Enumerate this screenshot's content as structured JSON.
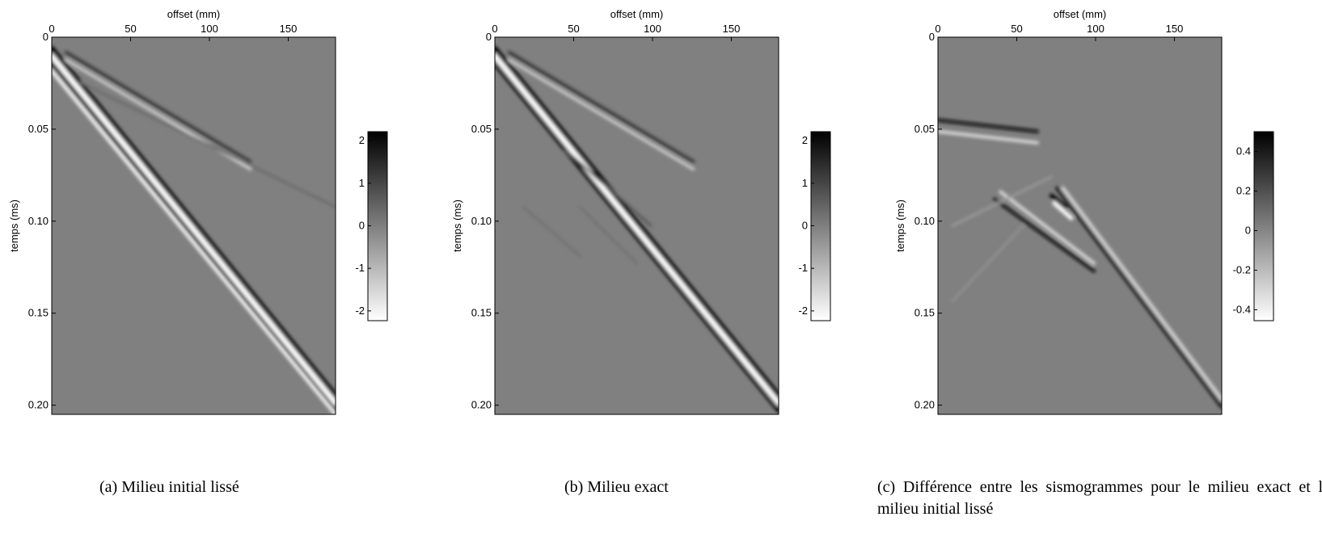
{
  "chart_data": [
    {
      "type": "image",
      "xlabel": "offset (mm)",
      "ylabel": "temps (ms)",
      "xlim": [
        0,
        180
      ],
      "xticks": [
        0,
        50,
        100,
        150
      ],
      "ylim": [
        0,
        0.205
      ],
      "yticks": [
        0,
        0.05,
        {
          "value": 0.1,
          "label": "0.10"
        },
        0.15,
        {
          "value": 0.2,
          "label": "0.20"
        }
      ],
      "colorbar": {
        "lim": [
          -2.23,
          2.21
        ],
        "ticks": [
          2,
          1,
          0,
          -1,
          -2
        ]
      },
      "caption": "(a) Milieu initial lissé"
    },
    {
      "type": "image",
      "xlabel": "offset (mm)",
      "ylabel": "temps (ms)",
      "xlim": [
        0,
        180
      ],
      "xticks": [
        0,
        50,
        100,
        150
      ],
      "ylim": [
        0,
        0.205
      ],
      "yticks": [
        0,
        0.05,
        {
          "value": 0.1,
          "label": "0.10"
        },
        0.15,
        {
          "value": 0.2,
          "label": "0.20"
        }
      ],
      "colorbar": {
        "lim": [
          -2.23,
          2.21
        ],
        "ticks": [
          2,
          1,
          0,
          -1,
          -2
        ]
      },
      "caption": "(b) Milieu exact"
    },
    {
      "type": "image",
      "xlabel": "offset (mm)",
      "ylabel": "temps (ms)",
      "xlim": [
        0,
        180
      ],
      "xticks": [
        0,
        50,
        100,
        150
      ],
      "ylim": [
        0,
        0.205
      ],
      "yticks": [
        0,
        0.05,
        {
          "value": 0.1,
          "label": "0.10"
        },
        0.15,
        {
          "value": 0.2,
          "label": "0.20"
        }
      ],
      "colorbar": {
        "lim": [
          -0.455,
          0.5
        ],
        "ticks": [
          0.4,
          0.2,
          0,
          -0.2,
          -0.4
        ]
      },
      "caption": "(c) Différence entre les sismogrammes pour le milieu exact et le milieu initial lissé"
    }
  ]
}
